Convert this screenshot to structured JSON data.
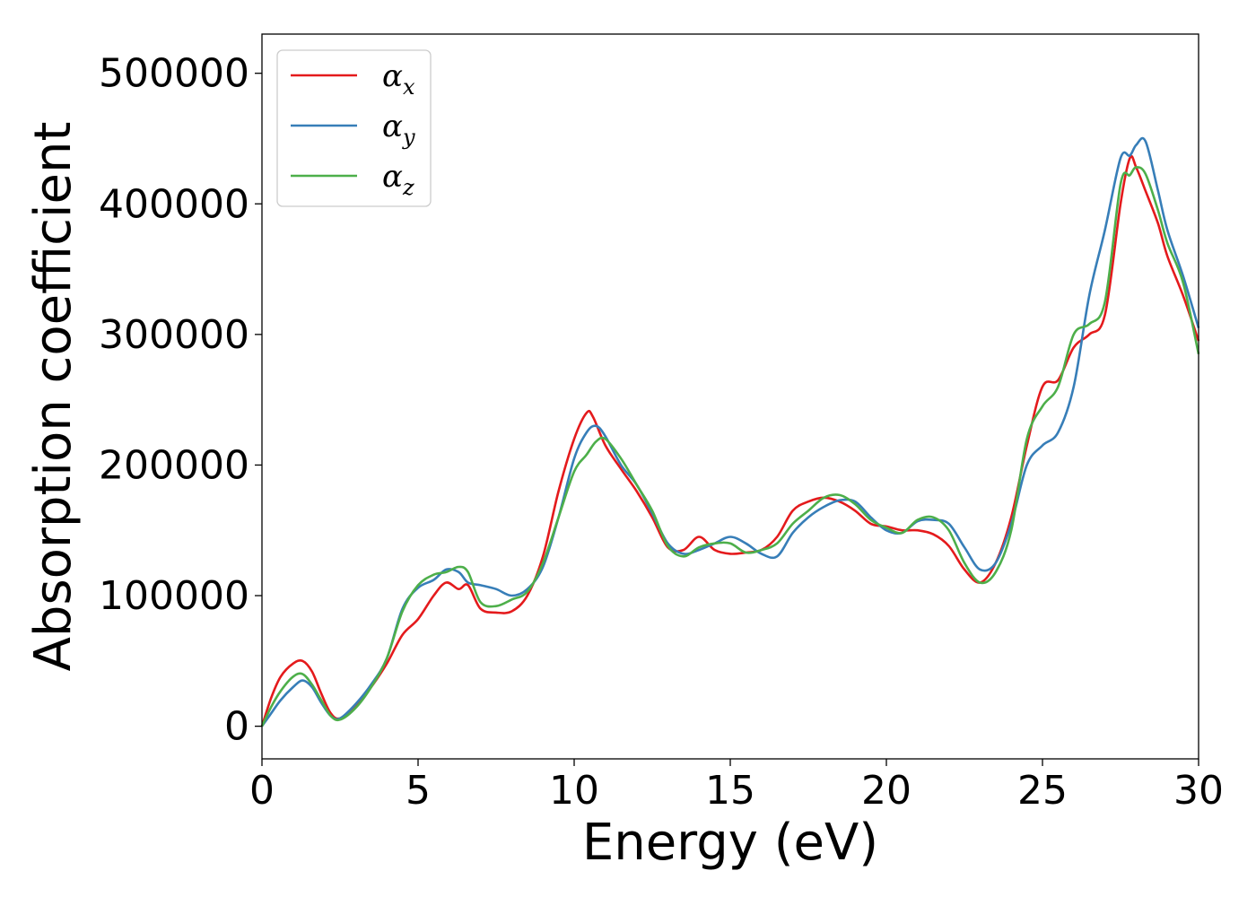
{
  "chart_data": {
    "type": "line",
    "title": "",
    "xlabel": "Energy (eV)",
    "ylabel": "Absorption coefficient",
    "xlim": [
      0,
      30
    ],
    "ylim": [
      -25000,
      530000
    ],
    "xticks": [
      0,
      5,
      10,
      15,
      20,
      25,
      30
    ],
    "yticks": [
      0,
      100000,
      200000,
      300000,
      400000,
      500000
    ],
    "grid": false,
    "legend_position": "top-left",
    "series": [
      {
        "name": "α_x",
        "legend_base": "α",
        "legend_sub": "x",
        "color": "#e41a1c",
        "x": [
          0,
          0.3,
          0.6,
          1.0,
          1.3,
          1.6,
          1.9,
          2.2,
          2.5,
          3.0,
          3.5,
          4.0,
          4.5,
          5.0,
          5.5,
          5.9,
          6.3,
          6.6,
          7.0,
          7.5,
          8.0,
          8.5,
          9.0,
          9.5,
          10.0,
          10.4,
          10.6,
          11.0,
          11.5,
          12.0,
          12.5,
          13.0,
          13.5,
          14.0,
          14.5,
          15.0,
          15.5,
          16.0,
          16.5,
          17.0,
          17.5,
          18.0,
          18.5,
          19.0,
          19.5,
          20.0,
          20.5,
          21.0,
          21.5,
          22.0,
          22.5,
          23.0,
          23.5,
          24.0,
          24.5,
          25.0,
          25.5,
          26.0,
          26.5,
          27.0,
          27.5,
          27.8,
          28.0,
          28.3,
          28.7,
          29.0,
          29.5,
          30.0
        ],
        "y": [
          0,
          22000,
          38000,
          48000,
          50000,
          42000,
          25000,
          10000,
          6000,
          15000,
          30000,
          48000,
          70000,
          82000,
          100000,
          110000,
          105000,
          108000,
          90000,
          87000,
          88000,
          100000,
          130000,
          180000,
          220000,
          240000,
          237000,
          215000,
          197000,
          180000,
          160000,
          137000,
          135000,
          145000,
          135000,
          132000,
          133000,
          135000,
          145000,
          165000,
          172000,
          175000,
          172000,
          165000,
          155000,
          153000,
          150000,
          150000,
          147000,
          138000,
          120000,
          110000,
          125000,
          160000,
          215000,
          260000,
          265000,
          290000,
          300000,
          315000,
          400000,
          435000,
          428000,
          410000,
          385000,
          360000,
          330000,
          295000
        ]
      },
      {
        "name": "α_y",
        "legend_base": "α",
        "legend_sub": "y",
        "color": "#377eb8",
        "x": [
          0,
          0.3,
          0.6,
          1.0,
          1.3,
          1.6,
          1.9,
          2.2,
          2.5,
          3.0,
          3.5,
          4.0,
          4.5,
          5.0,
          5.5,
          5.9,
          6.3,
          6.6,
          7.0,
          7.5,
          8.0,
          8.5,
          9.0,
          9.5,
          10.0,
          10.4,
          10.7,
          11.0,
          11.5,
          12.0,
          12.5,
          13.0,
          13.5,
          14.0,
          14.5,
          15.0,
          15.5,
          16.0,
          16.5,
          17.0,
          17.5,
          18.0,
          18.5,
          19.0,
          19.5,
          20.0,
          20.5,
          21.0,
          21.5,
          22.0,
          22.5,
          23.0,
          23.5,
          24.0,
          24.5,
          25.0,
          25.5,
          26.0,
          26.5,
          27.0,
          27.5,
          27.8,
          28.0,
          28.3,
          28.7,
          29.0,
          29.5,
          30.0
        ],
        "y": [
          0,
          10000,
          20000,
          30000,
          35000,
          30000,
          18000,
          8000,
          6000,
          17000,
          32000,
          52000,
          90000,
          106000,
          112000,
          120000,
          118000,
          110000,
          108000,
          105000,
          100000,
          105000,
          122000,
          160000,
          205000,
          225000,
          230000,
          222000,
          200000,
          185000,
          163000,
          140000,
          132000,
          135000,
          140000,
          145000,
          140000,
          132000,
          130000,
          148000,
          160000,
          168000,
          173000,
          172000,
          160000,
          150000,
          148000,
          157000,
          158000,
          155000,
          137000,
          120000,
          125000,
          155000,
          200000,
          215000,
          225000,
          260000,
          330000,
          380000,
          435000,
          437000,
          445000,
          448000,
          410000,
          380000,
          345000,
          305000
        ]
      },
      {
        "name": "α_z",
        "legend_base": "α",
        "legend_sub": "z",
        "color": "#4daf4a",
        "x": [
          0,
          0.3,
          0.6,
          1.0,
          1.3,
          1.6,
          1.9,
          2.2,
          2.5,
          3.0,
          3.5,
          4.0,
          4.5,
          5.0,
          5.5,
          5.9,
          6.3,
          6.6,
          7.0,
          7.5,
          8.0,
          8.5,
          9.0,
          9.5,
          10.0,
          10.4,
          10.7,
          11.0,
          11.5,
          12.0,
          12.5,
          13.0,
          13.5,
          14.0,
          14.5,
          15.0,
          15.5,
          16.0,
          16.5,
          17.0,
          17.5,
          18.0,
          18.5,
          19.0,
          19.5,
          20.0,
          20.5,
          21.0,
          21.5,
          22.0,
          22.5,
          23.0,
          23.5,
          24.0,
          24.5,
          25.0,
          25.5,
          26.0,
          26.5,
          27.0,
          27.5,
          27.8,
          28.0,
          28.3,
          28.7,
          29.0,
          29.5,
          30.0
        ],
        "y": [
          0,
          15000,
          27000,
          38000,
          40000,
          32000,
          20000,
          8000,
          5000,
          14000,
          30000,
          52000,
          88000,
          108000,
          116000,
          118000,
          122000,
          118000,
          95000,
          92000,
          97000,
          103000,
          125000,
          160000,
          195000,
          208000,
          218000,
          220000,
          205000,
          185000,
          165000,
          138000,
          130000,
          137000,
          140000,
          140000,
          133000,
          135000,
          140000,
          155000,
          165000,
          175000,
          177000,
          170000,
          158000,
          152000,
          148000,
          158000,
          160000,
          150000,
          125000,
          110000,
          118000,
          150000,
          220000,
          245000,
          260000,
          300000,
          308000,
          325000,
          415000,
          422000,
          428000,
          423000,
          395000,
          370000,
          340000,
          285000
        ]
      }
    ]
  }
}
